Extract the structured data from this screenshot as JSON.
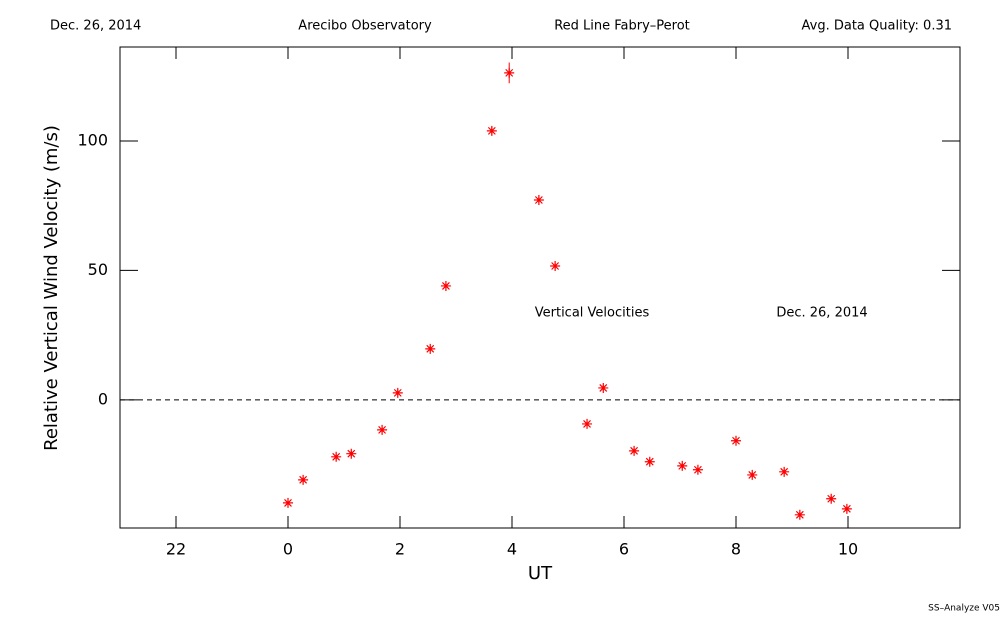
{
  "chart_data": {
    "type": "scatter",
    "header": [
      "Dec. 26, 2014",
      "Arecibo Observatory",
      "Red Line Fabry–Perot",
      "Avg. Data Quality: 0.31"
    ],
    "x_label": "UT",
    "y_label": "Relative Vertical Wind Velocity (m/s)",
    "annotations": [
      "Vertical Velocities",
      "Dec. 26, 2014"
    ],
    "footer": "SS–Analyze V05",
    "color": "#ff0000",
    "xlim": [
      -3,
      12
    ],
    "xticks": [
      {
        "value": -2,
        "label": "22"
      },
      0,
      2,
      4,
      6,
      8,
      10
    ],
    "ylim": [
      -49.5,
      136.3
    ],
    "yticks": [
      0,
      50,
      100
    ],
    "reference_line": 0,
    "x": [
      0.0,
      0.27,
      0.86,
      1.13,
      1.68,
      1.96,
      2.54,
      2.82,
      3.64,
      3.95,
      4.48,
      4.77,
      5.34,
      5.63,
      6.18,
      6.46,
      7.04,
      7.32,
      8.0,
      8.29,
      8.86,
      9.14,
      9.7,
      9.98
    ],
    "values": [
      -39.8,
      -30.9,
      -22.0,
      -20.8,
      -11.6,
      2.7,
      19.7,
      44.0,
      103.9,
      126.3,
      77.2,
      51.7,
      -9.3,
      4.6,
      -19.7,
      -23.9,
      -25.5,
      -27.0,
      -15.8,
      -29.0,
      -27.8,
      -44.4,
      -38.2,
      -42.1
    ],
    "errors": [
      1,
      1,
      1,
      1,
      1,
      1,
      1,
      1,
      1.5,
      4,
      1,
      1,
      1,
      1,
      1,
      1,
      1,
      1,
      1,
      1,
      1,
      1,
      1,
      1
    ]
  }
}
